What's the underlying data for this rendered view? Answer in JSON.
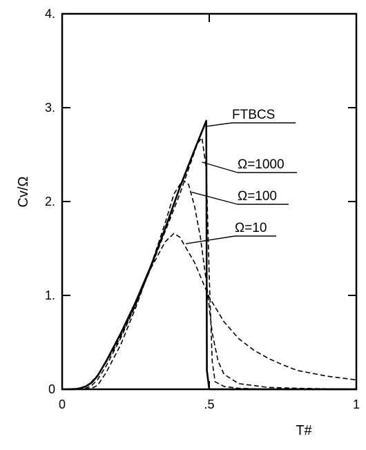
{
  "chart_data": {
    "type": "line",
    "xlabel": "T#",
    "ylabel": "Cv/Ω",
    "xlim": [
      0,
      1
    ],
    "ylim": [
      0,
      4
    ],
    "x_ticks": [
      {
        "value": 0,
        "label": "0"
      },
      {
        "value": 0.5,
        "label": ".5"
      },
      {
        "value": 1,
        "label": "1"
      }
    ],
    "y_ticks": [
      {
        "value": 0,
        "label": "0"
      },
      {
        "value": 1,
        "label": "1."
      },
      {
        "value": 2,
        "label": "2."
      },
      {
        "value": 3,
        "label": "3."
      },
      {
        "value": 4,
        "label": "4."
      }
    ],
    "grid": false,
    "series": [
      {
        "name": "FTBCS",
        "style": "solid",
        "x": [
          0,
          0.04,
          0.06,
          0.08,
          0.1,
          0.12,
          0.15,
          0.2,
          0.25,
          0.3,
          0.35,
          0.4,
          0.45,
          0.49,
          0.492,
          0.5,
          1.0
        ],
        "y": [
          0,
          0,
          0.01,
          0.03,
          0.07,
          0.14,
          0.3,
          0.6,
          0.93,
          1.3,
          1.71,
          2.15,
          2.55,
          2.86,
          0.2,
          0,
          0
        ]
      },
      {
        "name": "Ω=1000",
        "style": "dashed",
        "x": [
          0,
          0.08,
          0.1,
          0.12,
          0.15,
          0.2,
          0.25,
          0.3,
          0.35,
          0.4,
          0.43,
          0.46,
          0.475,
          0.49,
          0.5,
          0.51,
          0.52,
          0.55,
          0.6,
          0.7,
          1.0
        ],
        "y": [
          0,
          0.01,
          0.04,
          0.1,
          0.25,
          0.55,
          0.9,
          1.28,
          1.68,
          2.08,
          2.35,
          2.62,
          2.68,
          2.35,
          1.2,
          0.3,
          0.08,
          0.03,
          0.01,
          0,
          0
        ]
      },
      {
        "name": "Ω=100",
        "style": "dashed",
        "x": [
          0,
          0.1,
          0.12,
          0.15,
          0.2,
          0.25,
          0.3,
          0.35,
          0.38,
          0.41,
          0.43,
          0.45,
          0.47,
          0.49,
          0.51,
          0.53,
          0.55,
          0.6,
          0.7,
          0.8,
          1.0
        ],
        "y": [
          0,
          0.01,
          0.04,
          0.18,
          0.48,
          0.87,
          1.3,
          1.77,
          2.08,
          2.23,
          2.18,
          1.95,
          1.62,
          1.15,
          0.6,
          0.3,
          0.16,
          0.06,
          0.02,
          0.01,
          0
        ]
      },
      {
        "name": "Ω=10",
        "style": "dashed",
        "x": [
          0,
          0.06,
          0.08,
          0.1,
          0.12,
          0.15,
          0.18,
          0.2,
          0.25,
          0.3,
          0.35,
          0.38,
          0.4,
          0.45,
          0.5,
          0.55,
          0.6,
          0.65,
          0.7,
          0.75,
          0.8,
          0.9,
          1.0
        ],
        "y": [
          0,
          0.01,
          0.03,
          0.08,
          0.15,
          0.29,
          0.45,
          0.57,
          0.9,
          1.28,
          1.57,
          1.66,
          1.62,
          1.35,
          0.98,
          0.72,
          0.54,
          0.42,
          0.33,
          0.26,
          0.2,
          0.14,
          0.1
        ]
      }
    ],
    "annotations": [
      {
        "text": "FTBCS",
        "series": "FTBCS",
        "point": [
          0.488,
          2.8
        ]
      },
      {
        "text": "Ω=1000",
        "series": "Ω=1000",
        "point": [
          0.475,
          2.42
        ]
      },
      {
        "text": "Ω=100",
        "series": "Ω=100",
        "point": [
          0.44,
          2.1
        ]
      },
      {
        "text": "Ω=10",
        "series": "Ω=10",
        "point": [
          0.42,
          1.55
        ]
      }
    ]
  }
}
